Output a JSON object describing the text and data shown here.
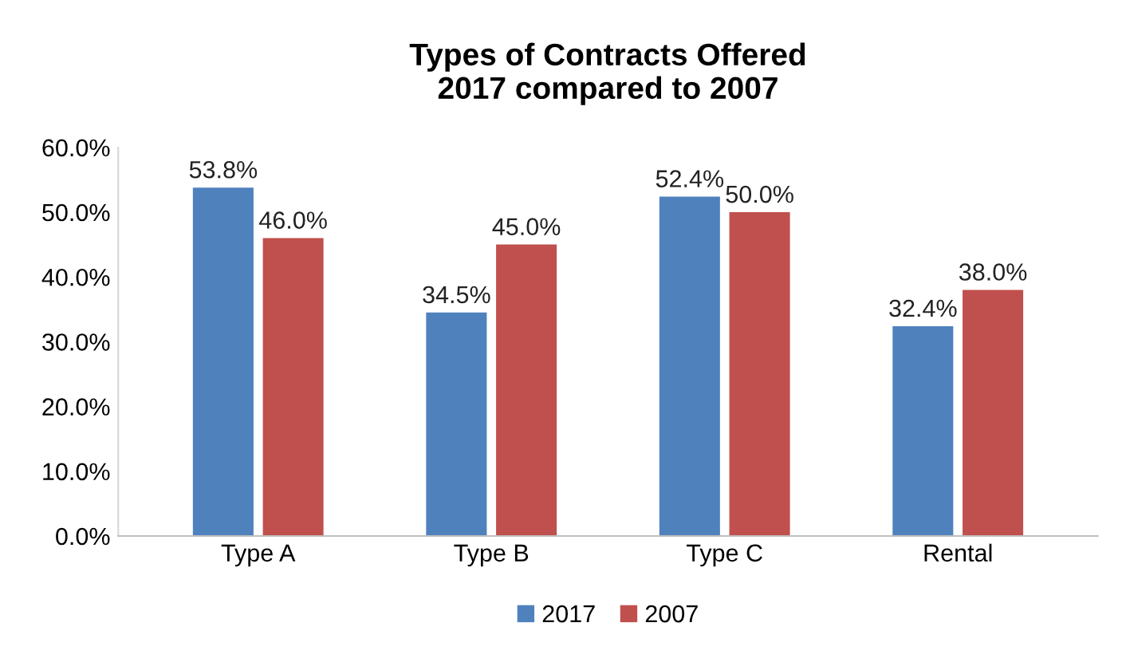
{
  "chart_data": {
    "type": "bar",
    "title": "Types of Contracts Offered\n2017 compared to 2007",
    "categories": [
      "Type A",
      "Type B",
      "Type C",
      "Rental"
    ],
    "series": [
      {
        "name": "2017",
        "color": "#4f81bd",
        "values": [
          53.8,
          34.5,
          52.4,
          32.4
        ],
        "value_labels": [
          "53.8%",
          "34.5%",
          "52.4%",
          "32.4%"
        ]
      },
      {
        "name": "2007",
        "color": "#c0504d",
        "values": [
          46.0,
          45.0,
          50.0,
          38.0
        ],
        "value_labels": [
          "46.0%",
          "45.0%",
          "50.0%",
          "38.0%"
        ]
      }
    ],
    "ylim": [
      0,
      60
    ],
    "yticks": [
      {
        "value": 0,
        "label": "0.0%"
      },
      {
        "value": 10,
        "label": "10.0%"
      },
      {
        "value": 20,
        "label": "20.0%"
      },
      {
        "value": 30,
        "label": "30.0%"
      },
      {
        "value": 40,
        "label": "40.0%"
      },
      {
        "value": 50,
        "label": "50.0%"
      },
      {
        "value": 60,
        "label": "60.0%"
      }
    ],
    "grid": false,
    "legend": "bottom"
  }
}
